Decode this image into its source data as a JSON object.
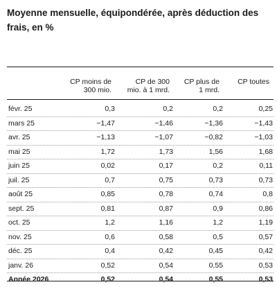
{
  "title": "Moyenne mensuelle, équipondérée, après déduction des frais, en %",
  "columns": [
    {
      "line1": "CP moins de",
      "line2": "300 mio."
    },
    {
      "line1": "CP de 300",
      "line2": "mio. à 1 mrd."
    },
    {
      "line1": "CP plus de",
      "line2": "1 mrd."
    },
    {
      "line1": "CP toutes",
      "line2": ""
    }
  ],
  "rows": [
    {
      "label": "févr. 25",
      "v1": "0,3",
      "v2": "0,2",
      "v3": "0,2",
      "v4": "0,25"
    },
    {
      "label": "mars 25",
      "v1": "−1,47",
      "v2": "−1,46",
      "v3": "−1,36",
      "v4": "−1,43"
    },
    {
      "label": "avr. 25",
      "v1": "−1,13",
      "v2": "−1,07",
      "v3": "−0,82",
      "v4": "−1,03"
    },
    {
      "label": "mai 25",
      "v1": "1,72",
      "v2": "1,73",
      "v3": "1,56",
      "v4": "1,68"
    },
    {
      "label": "juin 25",
      "v1": "0,02",
      "v2": "0,17",
      "v3": "0,2",
      "v4": "0,11"
    },
    {
      "label": "juil. 25",
      "v1": "0,7",
      "v2": "0,75",
      "v3": "0,73",
      "v4": "0,73"
    },
    {
      "label": "août 25",
      "v1": "0,85",
      "v2": "0,78",
      "v3": "0,74",
      "v4": "0,8"
    },
    {
      "label": "sept. 25",
      "v1": "0,81",
      "v2": "0,87",
      "v3": "0,9",
      "v4": "0,86"
    },
    {
      "label": "oct. 25",
      "v1": "1,2",
      "v2": "1,16",
      "v3": "1,2",
      "v4": "1,19"
    },
    {
      "label": "nov. 25",
      "v1": "0,6",
      "v2": "0,58",
      "v3": "0,5",
      "v4": "0,57"
    },
    {
      "label": "déc. 25",
      "v1": "0,4",
      "v2": "0,42",
      "v3": "0,45",
      "v4": "0,42"
    },
    {
      "label": "janv. 26",
      "v1": "0,52",
      "v2": "0,54",
      "v3": "0,55",
      "v4": "0,53"
    }
  ],
  "total": {
    "label": "Année 2026",
    "v1": "0,52",
    "v2": "0,54",
    "v3": "0,55",
    "v4": "0,53"
  }
}
